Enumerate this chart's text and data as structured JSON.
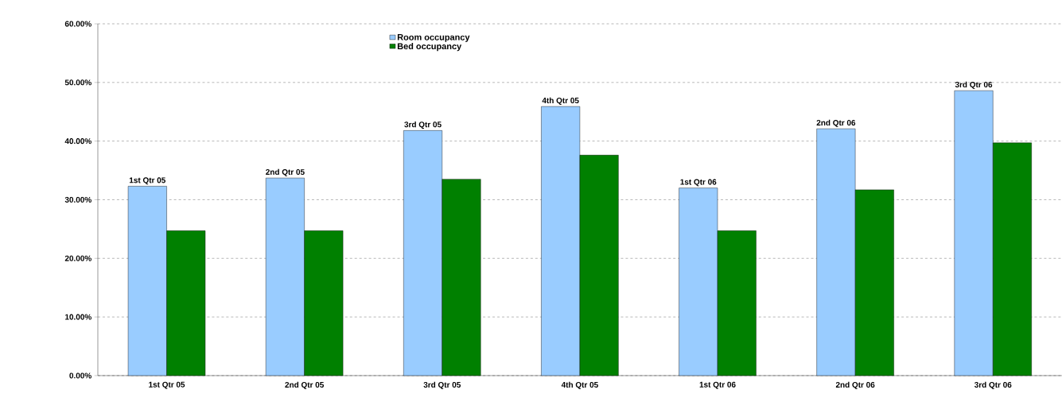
{
  "chart_data": {
    "type": "bar",
    "categories": [
      "1st Qtr 05",
      "2nd Qtr 05",
      "3rd Qtr 05",
      "4th Qtr 05",
      "1st Qtr 06",
      "2nd Qtr 06",
      "3rd Qtr 06"
    ],
    "series": [
      {
        "name": "Room occupancy",
        "color": "#99ccff",
        "values": [
          32.3,
          33.7,
          41.8,
          45.9,
          32.0,
          42.1,
          48.6
        ]
      },
      {
        "name": "Bed occupancy",
        "color": "#008000",
        "values": [
          24.7,
          24.7,
          33.5,
          37.6,
          24.7,
          31.7,
          39.7
        ]
      }
    ],
    "ylim": [
      0,
      60
    ],
    "yticks": [
      {
        "value": 0,
        "label": "0.00%"
      },
      {
        "value": 10,
        "label": "10.00%"
      },
      {
        "value": 20,
        "label": "20.00%"
      },
      {
        "value": 30,
        "label": "30.00%"
      },
      {
        "value": 40,
        "label": "40.00%"
      },
      {
        "value": 50,
        "label": "50.00%"
      },
      {
        "value": 60,
        "label": "60.00%"
      }
    ],
    "grid": "y",
    "legend": "top",
    "annotations": [
      {
        "text": "1st Qtr 05",
        "x": "1st Qtr 05",
        "y": 32.3
      },
      {
        "text": "2nd Qtr 05",
        "x": "2nd Qtr 05",
        "y": 33.7
      },
      {
        "text": "3rd Qtr 05",
        "x": "3rd Qtr 05",
        "y": 41.8
      },
      {
        "text": "4th Qtr 05",
        "x": "4th Qtr 05",
        "y": 45.9
      },
      {
        "text": "1st Qtr 06",
        "x": "1st Qtr 06",
        "y": 32.0
      },
      {
        "text": "2nd Qtr 06",
        "x": "2nd Qtr 06",
        "y": 42.1
      },
      {
        "text": "3rd Qtr 06",
        "x": "3rd Qtr 06",
        "y": 48.6
      }
    ]
  }
}
